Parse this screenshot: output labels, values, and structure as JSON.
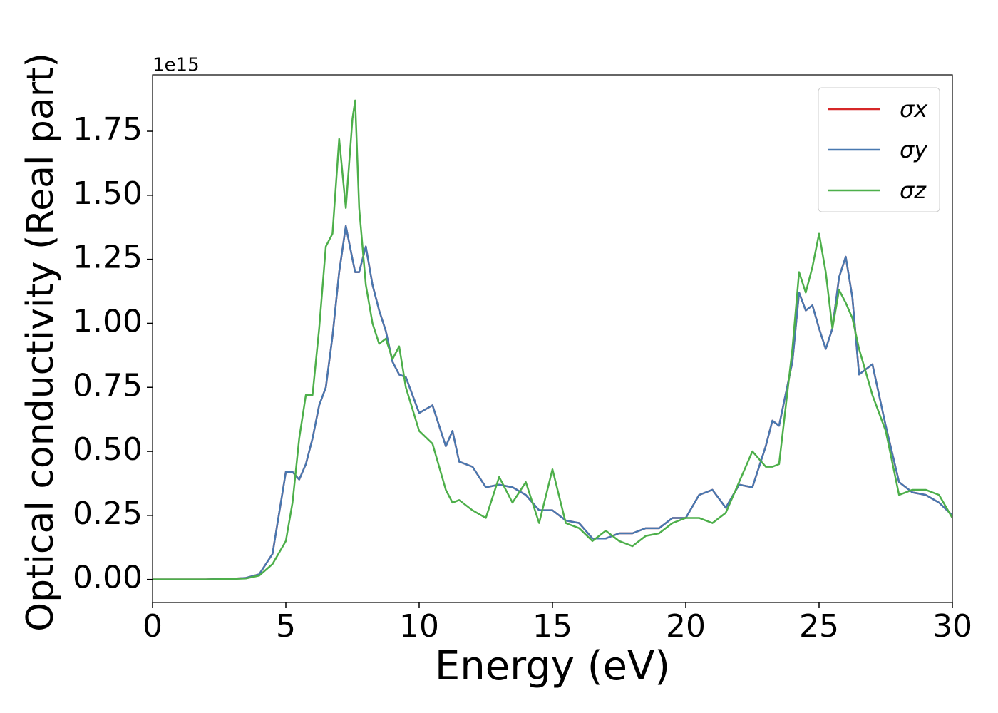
{
  "chart_data": {
    "type": "line",
    "xlabel": "Energy (eV)",
    "ylabel": "Optical conductivity (Real part)",
    "offset_label": "1e15",
    "x": [
      0,
      1,
      2,
      3,
      3.5,
      4,
      4.5,
      5,
      5.25,
      5.5,
      5.75,
      6,
      6.25,
      6.5,
      6.75,
      7,
      7.25,
      7.5,
      7.6,
      7.75,
      8,
      8.25,
      8.5,
      8.75,
      9,
      9.25,
      9.5,
      10,
      10.5,
      11,
      11.25,
      11.5,
      12,
      12.5,
      13,
      13.5,
      14,
      14.5,
      15,
      15.5,
      16,
      16.5,
      17,
      17.5,
      18,
      18.5,
      19,
      19.5,
      20,
      20.5,
      21,
      21.5,
      22,
      22.5,
      23,
      23.25,
      23.5,
      24,
      24.25,
      24.5,
      24.75,
      25,
      25.25,
      25.5,
      25.75,
      26,
      26.25,
      26.5,
      27,
      27.5,
      28,
      28.5,
      29,
      29.5,
      30
    ],
    "series": [
      {
        "name": "σx",
        "color": "#d62728",
        "values": [
          0,
          0,
          0,
          0.003,
          0.006,
          0.02,
          0.1,
          0.42,
          0.42,
          0.39,
          0.45,
          0.55,
          0.68,
          0.75,
          0.95,
          1.2,
          1.38,
          1.25,
          1.2,
          1.2,
          1.3,
          1.15,
          1.05,
          0.97,
          0.85,
          0.8,
          0.79,
          0.65,
          0.68,
          0.52,
          0.58,
          0.46,
          0.44,
          0.36,
          0.37,
          0.36,
          0.33,
          0.27,
          0.27,
          0.23,
          0.22,
          0.16,
          0.16,
          0.18,
          0.18,
          0.2,
          0.2,
          0.24,
          0.24,
          0.33,
          0.35,
          0.28,
          0.37,
          0.36,
          0.52,
          0.62,
          0.6,
          0.85,
          1.12,
          1.05,
          1.07,
          0.98,
          0.9,
          0.98,
          1.18,
          1.26,
          1.1,
          0.8,
          0.84,
          0.6,
          0.38,
          0.34,
          0.33,
          0.3,
          0.25
        ]
      },
      {
        "name": "σy",
        "color": "#4878b0",
        "values": [
          0,
          0,
          0,
          0.003,
          0.006,
          0.02,
          0.1,
          0.42,
          0.42,
          0.39,
          0.45,
          0.55,
          0.68,
          0.75,
          0.95,
          1.2,
          1.38,
          1.25,
          1.2,
          1.2,
          1.3,
          1.15,
          1.05,
          0.97,
          0.85,
          0.8,
          0.79,
          0.65,
          0.68,
          0.52,
          0.58,
          0.46,
          0.44,
          0.36,
          0.37,
          0.36,
          0.33,
          0.27,
          0.27,
          0.23,
          0.22,
          0.16,
          0.16,
          0.18,
          0.18,
          0.2,
          0.2,
          0.24,
          0.24,
          0.33,
          0.35,
          0.28,
          0.37,
          0.36,
          0.52,
          0.62,
          0.6,
          0.85,
          1.12,
          1.05,
          1.07,
          0.98,
          0.9,
          0.98,
          1.18,
          1.26,
          1.1,
          0.8,
          0.84,
          0.6,
          0.38,
          0.34,
          0.33,
          0.3,
          0.25
        ]
      },
      {
        "name": "σz",
        "color": "#4daf4a",
        "values": [
          0,
          0,
          0,
          0.002,
          0.004,
          0.015,
          0.06,
          0.15,
          0.3,
          0.55,
          0.72,
          0.72,
          0.98,
          1.3,
          1.35,
          1.72,
          1.45,
          1.8,
          1.87,
          1.45,
          1.15,
          1.0,
          0.92,
          0.94,
          0.86,
          0.91,
          0.75,
          0.58,
          0.53,
          0.35,
          0.3,
          0.31,
          0.27,
          0.24,
          0.4,
          0.3,
          0.38,
          0.22,
          0.43,
          0.22,
          0.2,
          0.15,
          0.19,
          0.15,
          0.13,
          0.17,
          0.18,
          0.22,
          0.24,
          0.24,
          0.22,
          0.26,
          0.38,
          0.5,
          0.44,
          0.44,
          0.45,
          0.9,
          1.2,
          1.12,
          1.22,
          1.35,
          1.2,
          0.98,
          1.13,
          1.08,
          1.02,
          0.9,
          0.72,
          0.58,
          0.33,
          0.35,
          0.35,
          0.33,
          0.24
        ]
      }
    ],
    "xlim": [
      0,
      30
    ],
    "ylim": [
      -0.09,
      1.97
    ],
    "xticks": [
      0,
      5,
      10,
      15,
      20,
      25,
      30
    ],
    "yticks": [
      {
        "value": 0,
        "label": "0.00"
      },
      0.25,
      {
        "value": 0.5,
        "label": "0.50"
      },
      0.75,
      {
        "value": 1,
        "label": "1.00"
      },
      1.25,
      {
        "value": 1.5,
        "label": "1.50"
      },
      1.75
    ],
    "grid": false,
    "legend": "upper right"
  }
}
